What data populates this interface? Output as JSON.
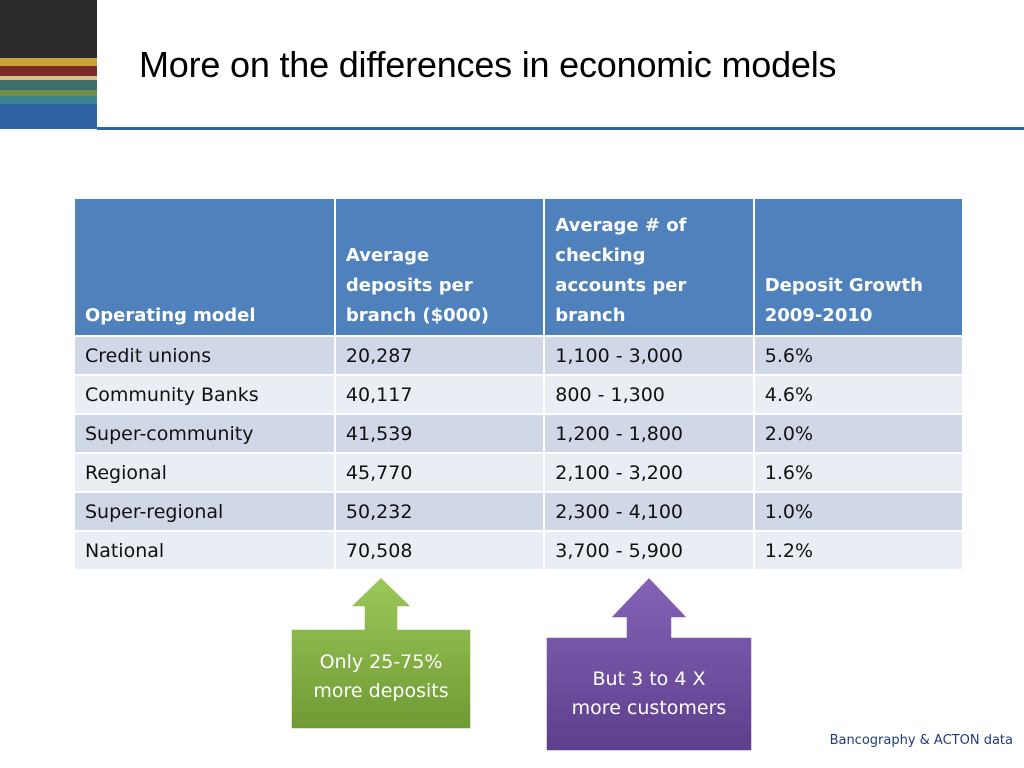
{
  "title": "More on the differences in economic models",
  "table": {
    "headers": [
      "Operating model",
      "Average\ndeposits per\nbranch ($000)",
      "Average # of\nchecking\naccounts per\nbranch",
      "Deposit Growth\n2009-2010"
    ],
    "rows": [
      [
        "Credit unions",
        "20,287",
        "1,100 - 3,000",
        "5.6%"
      ],
      [
        "Community Banks",
        "40,117",
        "800 - 1,300",
        "4.6%"
      ],
      [
        "Super-community",
        "41,539",
        "1,200 - 1,800",
        "2.0%"
      ],
      [
        "Regional",
        "45,770",
        "2,100 - 3,200",
        "1.6%"
      ],
      [
        "Super-regional",
        "50,232",
        "2,300 - 4,100",
        "1.0%"
      ],
      [
        "National",
        "70,508",
        "3,700 - 5,900",
        "1.2%"
      ]
    ]
  },
  "callouts": {
    "deposits": {
      "text": "Only 25-75%\nmore deposits",
      "color": "#77a33a"
    },
    "customers": {
      "text": "But 3 to 4 X\nmore customers",
      "color": "#6a4a9b"
    }
  },
  "source": "Bancography & ACTON data",
  "colors": {
    "header_fill": "#4f81bd",
    "row_odd": "#d0d8e8",
    "row_even": "#e9edf4",
    "accent_rule": "#2f62a3"
  }
}
